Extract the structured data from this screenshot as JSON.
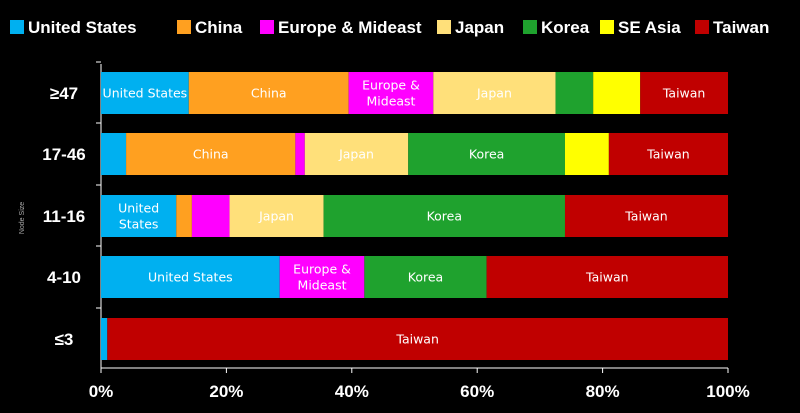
{
  "chart_data": {
    "type": "bar",
    "orientation": "horizontal",
    "stacked": true,
    "title": "",
    "xlabel": "",
    "ylabel": "Node Size",
    "xlim": [
      0,
      100
    ],
    "x_ticks": [
      "0%",
      "20%",
      "40%",
      "60%",
      "80%",
      "100%"
    ],
    "legend_position": "top",
    "categories": [
      "≥47",
      "17-46",
      "11-16",
      "4-10",
      "≤3"
    ],
    "series": [
      {
        "name": "United States",
        "color": "#00B0F0",
        "values": [
          14,
          4,
          12,
          28.5,
          1
        ]
      },
      {
        "name": "China",
        "color": "#FFA020",
        "values": [
          25.5,
          27,
          2.5,
          0,
          0
        ]
      },
      {
        "name": "Europe & Mideast",
        "color": "#FF00FF",
        "values": [
          13.5,
          1.5,
          6,
          13.5,
          0
        ]
      },
      {
        "name": "Japan",
        "color": "#FFE07A",
        "values": [
          19.5,
          16.5,
          15,
          0,
          0
        ]
      },
      {
        "name": "Korea",
        "color": "#1FA22E",
        "values": [
          6,
          25,
          38.5,
          19.5,
          0
        ]
      },
      {
        "name": "SE Asia",
        "color": "#FFFF00",
        "values": [
          7.5,
          7,
          0,
          0,
          0
        ]
      },
      {
        "name": "Taiwan",
        "color": "#C00000",
        "values": [
          14,
          19,
          26,
          38.5,
          99
        ]
      }
    ],
    "bar_labels": [
      {
        "category": 0,
        "series": 0,
        "lines": [
          "United States"
        ]
      },
      {
        "category": 0,
        "series": 1,
        "lines": [
          "China"
        ]
      },
      {
        "category": 0,
        "series": 2,
        "lines": [
          "Europe &",
          "Mideast"
        ]
      },
      {
        "category": 0,
        "series": 3,
        "lines": [
          "Japan"
        ]
      },
      {
        "category": 0,
        "series": 6,
        "lines": [
          "Taiwan"
        ]
      },
      {
        "category": 1,
        "series": 1,
        "lines": [
          "China"
        ]
      },
      {
        "category": 1,
        "series": 3,
        "lines": [
          "Japan"
        ]
      },
      {
        "category": 1,
        "series": 4,
        "lines": [
          "Korea"
        ]
      },
      {
        "category": 1,
        "series": 6,
        "lines": [
          "Taiwan"
        ]
      },
      {
        "category": 2,
        "series": 0,
        "lines": [
          "United",
          "States"
        ]
      },
      {
        "category": 2,
        "series": 3,
        "lines": [
          "Japan"
        ]
      },
      {
        "category": 2,
        "series": 4,
        "lines": [
          "Korea"
        ]
      },
      {
        "category": 2,
        "series": 6,
        "lines": [
          "Taiwan"
        ]
      },
      {
        "category": 3,
        "series": 0,
        "lines": [
          "United States"
        ]
      },
      {
        "category": 3,
        "series": 2,
        "lines": [
          "Europe &",
          "Mideast"
        ]
      },
      {
        "category": 3,
        "series": 4,
        "lines": [
          "Korea"
        ]
      },
      {
        "category": 3,
        "series": 6,
        "lines": [
          "Taiwan"
        ]
      },
      {
        "category": 4,
        "series": 6,
        "lines": [
          "Taiwan"
        ]
      }
    ]
  }
}
